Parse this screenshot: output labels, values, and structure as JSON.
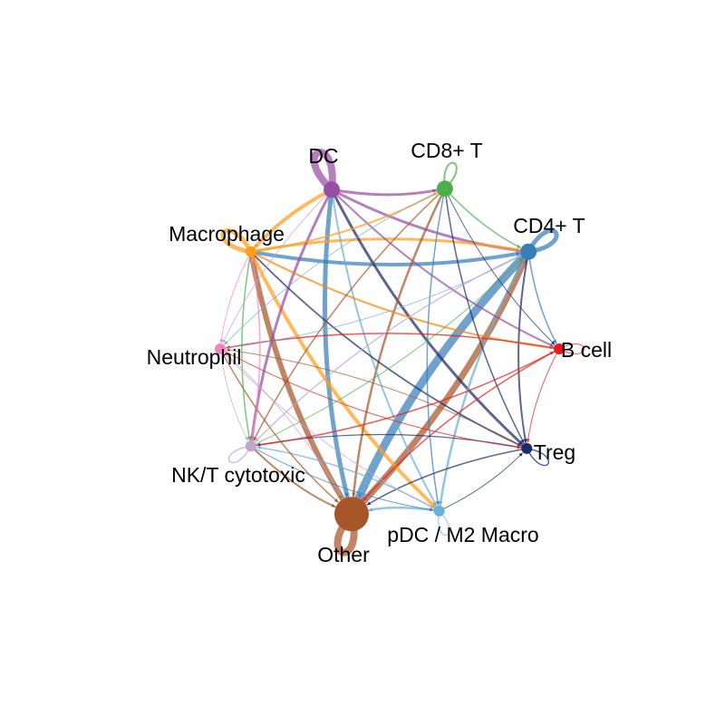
{
  "nodes": [
    {
      "id": "dc",
      "label": "DC",
      "color": "#984EA3",
      "size": "medium"
    },
    {
      "id": "cd8",
      "label": "CD8+ T",
      "color": "#4DAF4A",
      "size": "medium"
    },
    {
      "id": "cd4",
      "label": "CD4+ T",
      "color": "#377EB8",
      "size": "medium"
    },
    {
      "id": "bcell",
      "label": "B cell",
      "color": "#E41A1C",
      "size": "small"
    },
    {
      "id": "treg",
      "label": "Treg",
      "color": "#1F2A6B",
      "size": "small"
    },
    {
      "id": "pdc",
      "label": "pDC / M2 Macro",
      "color": "#6BAED6",
      "size": "small"
    },
    {
      "id": "other",
      "label": "Other",
      "color": "#A65628",
      "size": "large"
    },
    {
      "id": "nk",
      "label": "NK/T cytotoxic",
      "color": "#C2A5CF",
      "size": "small"
    },
    {
      "id": "neutrophil",
      "label": "Neutrophil",
      "color": "#F781BF",
      "size": "small"
    },
    {
      "id": "macrophage",
      "label": "Macrophage",
      "color": "#FF9E1B",
      "size": "small"
    }
  ],
  "edges": [
    {
      "from": "dc",
      "to": "dc",
      "weight": 8,
      "color": "#984EA3"
    },
    {
      "from": "cd8",
      "to": "cd8",
      "weight": 2,
      "color": "#4DAF4A"
    },
    {
      "from": "cd4",
      "to": "cd4",
      "weight": 5,
      "color": "#377EB8"
    },
    {
      "from": "macrophage",
      "to": "macrophage",
      "weight": 5,
      "color": "#FF9E1B"
    },
    {
      "from": "other",
      "to": "other",
      "weight": 8,
      "color": "#A65628"
    },
    {
      "from": "treg",
      "to": "treg",
      "weight": 1.5,
      "color": "#1F2A6B"
    },
    {
      "from": "bcell",
      "to": "bcell",
      "weight": 1,
      "color": "#E41A1C"
    },
    {
      "from": "pdc",
      "to": "pdc",
      "weight": 1,
      "color": "#6BAED6"
    },
    {
      "from": "nk",
      "to": "nk",
      "weight": 1.5,
      "color": "#C2A5CF"
    },
    {
      "from": "cd4",
      "to": "other",
      "weight": 9,
      "color": "#377EB8"
    },
    {
      "from": "other",
      "to": "cd4",
      "weight": 7,
      "color": "#A65628"
    },
    {
      "from": "macrophage",
      "to": "other",
      "weight": 6,
      "color": "#A65628"
    },
    {
      "from": "dc",
      "to": "other",
      "weight": 5,
      "color": "#377EB8"
    },
    {
      "from": "macrophage",
      "to": "cd4",
      "weight": 4,
      "color": "#377EB8"
    },
    {
      "from": "dc",
      "to": "macrophage",
      "weight": 4,
      "color": "#FF9E1B"
    },
    {
      "from": "macrophage",
      "to": "pdc",
      "weight": 4,
      "color": "#FF9E1B"
    },
    {
      "from": "dc",
      "to": "cd4",
      "weight": 3,
      "color": "#984EA3"
    },
    {
      "from": "cd4",
      "to": "macrophage",
      "weight": 3,
      "color": "#FF9E1B"
    },
    {
      "from": "dc",
      "to": "treg",
      "weight": 3,
      "color": "#1F2A6B"
    },
    {
      "from": "dc",
      "to": "cd8",
      "weight": 3,
      "color": "#984EA3"
    },
    {
      "from": "dc",
      "to": "nk",
      "weight": 3,
      "color": "#984EA3"
    },
    {
      "from": "cd8",
      "to": "other",
      "weight": 2.5,
      "color": "#A65628"
    },
    {
      "from": "cd4",
      "to": "treg",
      "weight": 2,
      "color": "#1F2A6B"
    },
    {
      "from": "cd4",
      "to": "pdc",
      "weight": 2.5,
      "color": "#6BAED6"
    },
    {
      "from": "dc",
      "to": "pdc",
      "weight": 2,
      "color": "#6BAED6"
    },
    {
      "from": "nk",
      "to": "other",
      "weight": 2,
      "color": "#A65628"
    },
    {
      "from": "macrophage",
      "to": "treg",
      "weight": 1.8,
      "color": "#1F2A6B"
    },
    {
      "from": "macrophage",
      "to": "bcell",
      "weight": 2,
      "color": "#FF7F00"
    },
    {
      "from": "dc",
      "to": "bcell",
      "weight": 2,
      "color": "#984EA3"
    },
    {
      "from": "macrophage",
      "to": "cd8",
      "weight": 2,
      "color": "#FF9E1B"
    },
    {
      "from": "cd8",
      "to": "nk",
      "weight": 1.5,
      "color": "#A65628"
    },
    {
      "from": "cd8",
      "to": "treg",
      "weight": 1.5,
      "color": "#1F2A6B"
    },
    {
      "from": "cd8",
      "to": "pdc",
      "weight": 1.5,
      "color": "#377EB8"
    },
    {
      "from": "cd8",
      "to": "cd4",
      "weight": 1.5,
      "color": "#4DAF4A"
    },
    {
      "from": "bcell",
      "to": "neutrophil",
      "weight": 1.5,
      "color": "#E41A1C"
    },
    {
      "from": "bcell",
      "to": "other",
      "weight": 1.5,
      "color": "#E41A1C"
    },
    {
      "from": "treg",
      "to": "other",
      "weight": 1.5,
      "color": "#1F2A6B"
    },
    {
      "from": "treg",
      "to": "nk",
      "weight": 1.2,
      "color": "#1F2A6B"
    },
    {
      "from": "treg",
      "to": "neutrophil",
      "weight": 1,
      "color": "#A65628"
    },
    {
      "from": "pdc",
      "to": "other",
      "weight": 2.5,
      "color": "#6BAED6"
    },
    {
      "from": "pdc",
      "to": "nk",
      "weight": 1.5,
      "color": "#6BAED6"
    },
    {
      "from": "neutrophil",
      "to": "other",
      "weight": 1.5,
      "color": "#A65628"
    },
    {
      "from": "neutrophil",
      "to": "cd4",
      "weight": 1,
      "color": "#6BAED6"
    },
    {
      "from": "neutrophil",
      "to": "treg",
      "weight": 1,
      "color": "#E41A1C"
    },
    {
      "from": "nk",
      "to": "bcell",
      "weight": 1.5,
      "color": "#E41A1C"
    },
    {
      "from": "nk",
      "to": "cd4",
      "weight": 1,
      "color": "#4DAF4A"
    },
    {
      "from": "nk",
      "to": "macrophage",
      "weight": 1.5,
      "color": "#F781BF"
    },
    {
      "from": "cd4",
      "to": "bcell",
      "weight": 1.5,
      "color": "#377EB8"
    },
    {
      "from": "cd4",
      "to": "nk",
      "weight": 1.5,
      "color": "#C2A5CF"
    },
    {
      "from": "macrophage",
      "to": "nk",
      "weight": 1.5,
      "color": "#4DAF4A"
    },
    {
      "from": "macrophage",
      "to": "neutrophil",
      "weight": 1,
      "color": "#F781BF"
    },
    {
      "from": "dc",
      "to": "neutrophil",
      "weight": 1,
      "color": "#C2A5CF"
    },
    {
      "from": "cd8",
      "to": "neutrophil",
      "weight": 1,
      "color": "#6BAED6"
    },
    {
      "from": "bcell",
      "to": "treg",
      "weight": 1,
      "color": "#E41A1C"
    },
    {
      "from": "pdc",
      "to": "treg",
      "weight": 1,
      "color": "#1F2A6B"
    },
    {
      "from": "cd8",
      "to": "bcell",
      "weight": 1,
      "color": "#1F2A6B"
    },
    {
      "from": "neutrophil",
      "to": "nk",
      "weight": 1,
      "color": "#C2A5CF"
    },
    {
      "from": "neutrophil",
      "to": "pdc",
      "weight": 1,
      "color": "#C2A5CF"
    },
    {
      "from": "other",
      "to": "neutrophil",
      "weight": 1,
      "color": "#C2A5CF"
    },
    {
      "from": "nk",
      "to": "pdc",
      "weight": 1,
      "color": "#377EB8"
    }
  ]
}
